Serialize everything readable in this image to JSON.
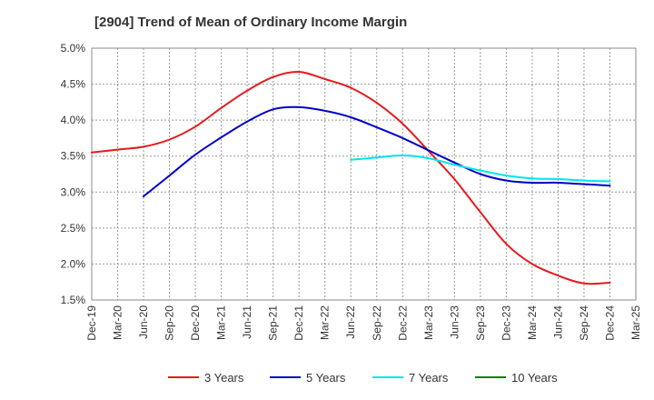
{
  "chart_data": {
    "type": "line",
    "title": "[2904]  Trend of Mean of Ordinary Income Margin",
    "x": [
      "Dec-19",
      "Mar-20",
      "Jun-20",
      "Sep-20",
      "Dec-20",
      "Mar-21",
      "Jun-21",
      "Sep-21",
      "Dec-21",
      "Mar-22",
      "Jun-22",
      "Sep-22",
      "Dec-22",
      "Mar-23",
      "Jun-23",
      "Sep-23",
      "Dec-23",
      "Mar-24",
      "Jun-24",
      "Sep-24",
      "Dec-24",
      "Mar-25"
    ],
    "y_ticks": [
      "5.0%",
      "4.5%",
      "4.0%",
      "3.5%",
      "3.0%",
      "2.5%",
      "2.0%",
      "1.5%"
    ],
    "ylim": [
      1.5,
      5.0
    ],
    "y_unit": "%",
    "grid": true,
    "legend_position": "bottom",
    "series": [
      {
        "name": "3 Years",
        "color": "#e41a1c",
        "values": [
          3.55,
          3.59,
          3.63,
          3.73,
          3.91,
          4.17,
          4.41,
          4.6,
          4.67,
          4.57,
          4.45,
          4.24,
          3.95,
          3.57,
          3.18,
          2.72,
          2.28,
          2.0,
          1.84,
          1.73,
          1.74,
          null
        ]
      },
      {
        "name": "5 Years",
        "color": "#0000cc",
        "values": [
          null,
          null,
          2.94,
          3.23,
          3.52,
          3.76,
          3.98,
          4.15,
          4.18,
          4.13,
          4.04,
          3.9,
          3.75,
          3.58,
          3.41,
          3.25,
          3.16,
          3.13,
          3.13,
          3.11,
          3.09,
          null
        ]
      },
      {
        "name": "7 Years",
        "color": "#00e5ee",
        "values": [
          null,
          null,
          null,
          null,
          null,
          null,
          null,
          null,
          null,
          null,
          3.45,
          3.48,
          3.51,
          3.47,
          3.38,
          3.3,
          3.23,
          3.19,
          3.18,
          3.16,
          3.15,
          null
        ]
      },
      {
        "name": "10 Years",
        "color": "#008000",
        "values": [
          null,
          null,
          null,
          null,
          null,
          null,
          null,
          null,
          null,
          null,
          null,
          null,
          null,
          null,
          null,
          null,
          null,
          null,
          null,
          null,
          null,
          null
        ]
      }
    ]
  }
}
